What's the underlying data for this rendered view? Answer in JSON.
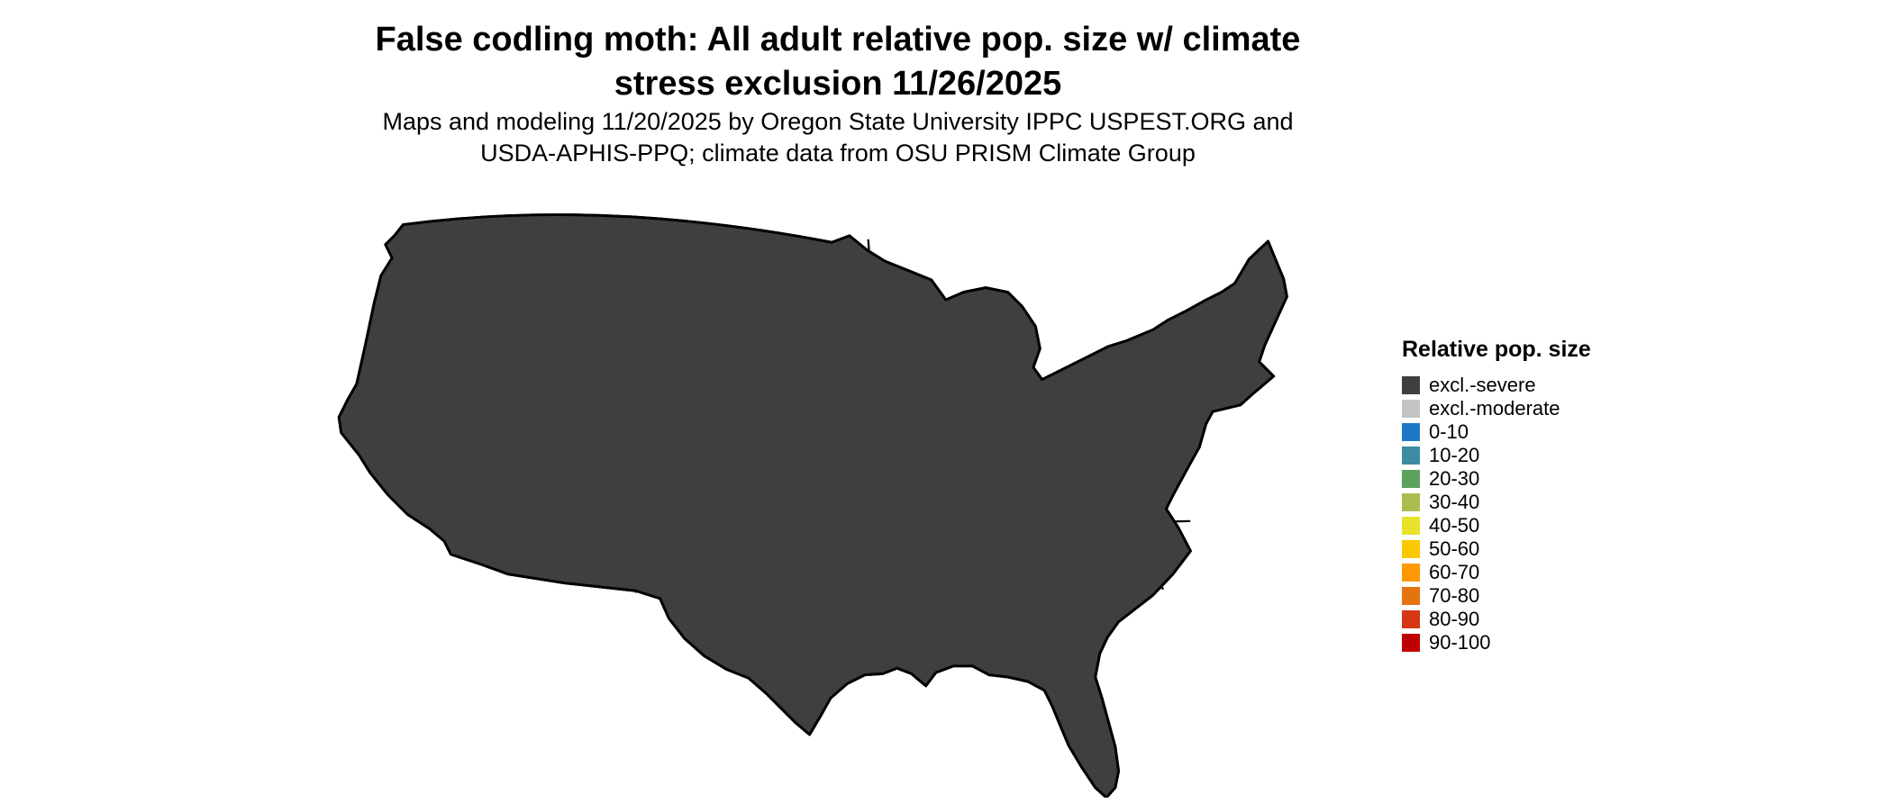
{
  "header": {
    "title_line1": "False codling moth: All adult relative pop. size w/ climate",
    "title_line2": "stress exclusion 11/26/2025",
    "subtitle_line1": "Maps and modeling 11/20/2025 by Oregon State University IPPC USPEST.ORG and",
    "subtitle_line2": "USDA-APHIS-PPQ; climate data from OSU PRISM Climate Group"
  },
  "legend": {
    "title": "Relative pop. size",
    "items": [
      {
        "key": "severe",
        "label": "excl.-severe",
        "color": "#3f3f3f"
      },
      {
        "key": "mod",
        "label": "excl.-moderate",
        "color": "#c4c4c4"
      },
      {
        "key": "b0",
        "label": "0-10",
        "color": "#1e78c8"
      },
      {
        "key": "b10",
        "label": "10-20",
        "color": "#3d8ba0"
      },
      {
        "key": "b20",
        "label": "20-30",
        "color": "#5aa25e"
      },
      {
        "key": "b30",
        "label": "30-40",
        "color": "#abbd4f"
      },
      {
        "key": "b40",
        "label": "40-50",
        "color": "#e8e22b"
      },
      {
        "key": "b50",
        "label": "50-60",
        "color": "#fcc800"
      },
      {
        "key": "b60",
        "label": "60-70",
        "color": "#ff9900"
      },
      {
        "key": "b70",
        "label": "70-80",
        "color": "#e57310"
      },
      {
        "key": "b80",
        "label": "80-90",
        "color": "#d63815"
      },
      {
        "key": "b90",
        "label": "90-100",
        "color": "#c00000"
      }
    ]
  }
}
